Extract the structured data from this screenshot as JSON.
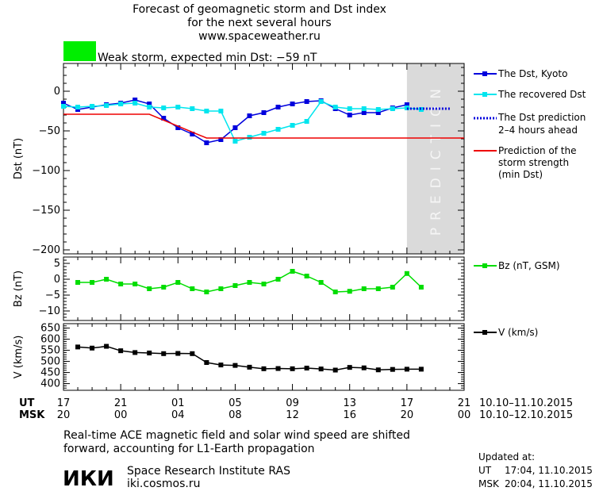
{
  "header": {
    "title_lines": [
      "Forecast of geomagnetic storm and Dst index",
      "for the next several hours",
      "www.spaceweather.ru"
    ],
    "status_text": "Weak storm, expected min Dst: −59 nT",
    "status_color": "#00ee00"
  },
  "x_axis": {
    "ut_label": "UT",
    "msk_label": "MSK",
    "ut_ticks": [
      "17",
      "21",
      "01",
      "05",
      "09",
      "13",
      "17",
      "21"
    ],
    "msk_ticks": [
      "20",
      "00",
      "04",
      "08",
      "12",
      "16",
      "20",
      "00"
    ],
    "ut_range": "10.10–11.10.2015",
    "msk_range": "10.10–12.10.2015"
  },
  "prediction_band_text": "PREDICTION",
  "legend": {
    "dst_kyoto": "The Dst, Kyoto",
    "dst_recovered": "The recovered Dst",
    "dst_prediction_1": "The Dst prediction",
    "dst_prediction_2": "2–4 hours ahead",
    "storm_1": "Prediction of the",
    "storm_2": "storm strength",
    "storm_3": "(min Dst)",
    "bz": "Bz (nT, GSM)",
    "v": "V (km/s)"
  },
  "footer": {
    "note_line1": "Real-time ACE magnetic field and solar wind speed are shifted",
    "note_line2": "forward, accounting for L1-Earth propagation",
    "logo_text": "ИКИ",
    "institute": "Space Research Institute RAS",
    "site": "iki.cosmos.ru",
    "updated_label": "Updated at:",
    "updated_ut_label": "UT",
    "updated_ut_value": "17:04, 11.10.2015",
    "updated_msk_label": "MSK",
    "updated_msk_value": "20:04, 11.10.2015"
  },
  "chart_data": [
    {
      "type": "line",
      "ylabel": "Dst (nT)",
      "ylim": [
        -205,
        35
      ],
      "yticks": [
        0,
        -50,
        -100,
        -150,
        -200
      ],
      "xlim": [
        0,
        28
      ],
      "prediction_start": 24,
      "series": [
        {
          "name": "The Dst, Kyoto",
          "color": "#0000dd",
          "marker": "square",
          "x": [
            0,
            1,
            2,
            3,
            4,
            5,
            6,
            7,
            8,
            9,
            10,
            11,
            12,
            13,
            14,
            15,
            16,
            17,
            18,
            19,
            20,
            21,
            22,
            23,
            24
          ],
          "y": [
            -15,
            -23,
            -20,
            -17,
            -15,
            -11,
            -16,
            -34,
            -46,
            -54,
            -65,
            -61,
            -46,
            -31,
            -27,
            -20,
            -16,
            -13,
            -12,
            -22,
            -30,
            -27,
            -27,
            -21,
            -17
          ]
        },
        {
          "name": "The recovered Dst",
          "color": "#00e5ee",
          "marker": "square",
          "x": [
            0,
            1,
            2,
            3,
            4,
            5,
            6,
            7,
            8,
            9,
            10,
            11,
            12,
            13,
            14,
            15,
            16,
            17,
            18,
            19,
            20,
            21,
            22,
            23,
            24,
            25
          ],
          "y": [
            -19,
            -20,
            -19,
            -18,
            -16,
            -15,
            -20,
            -21,
            -20,
            -22,
            -25,
            -25,
            -63,
            -58,
            -53,
            -48,
            -43,
            -38,
            -13,
            -20,
            -22,
            -22,
            -23,
            -22,
            -21,
            -23
          ]
        },
        {
          "name": "The Dst prediction",
          "color": "#0000dd",
          "dashed": true,
          "x": [
            24,
            25,
            26,
            27
          ],
          "y": [
            -22,
            -22,
            -22,
            -22
          ]
        },
        {
          "name": "Prediction of the storm strength (min Dst)",
          "color": "#ee0000",
          "x": [
            0,
            6,
            10,
            28
          ],
          "y": [
            -29,
            -29,
            -59,
            -59
          ]
        }
      ]
    },
    {
      "type": "line",
      "ylabel": "Bz (nT)",
      "ylim": [
        -13,
        7
      ],
      "yticks": [
        5,
        0,
        -5,
        -10
      ],
      "xlim": [
        0,
        28
      ],
      "series": [
        {
          "name": "Bz (nT, GSM)",
          "color": "#00dd00",
          "marker": "square",
          "x": [
            1,
            2,
            3,
            4,
            5,
            6,
            7,
            8,
            9,
            10,
            11,
            12,
            13,
            14,
            15,
            16,
            17,
            18,
            19,
            20,
            21,
            22,
            23,
            24,
            25
          ],
          "y": [
            -1,
            -1,
            0,
            -1.5,
            -1.5,
            -3,
            -2.5,
            -1,
            -3,
            -4,
            -3,
            -2,
            -1,
            -1.5,
            0,
            2.5,
            1,
            -1,
            -4,
            -3.8,
            -3,
            -3,
            -2.5,
            1.8,
            -2.5
          ]
        }
      ]
    },
    {
      "type": "line",
      "ylabel": "V (km/s)",
      "ylim": [
        370,
        670
      ],
      "yticks": [
        650,
        600,
        550,
        500,
        450,
        400
      ],
      "xlim": [
        0,
        28
      ],
      "series": [
        {
          "name": "V (km/s)",
          "color": "#000000",
          "marker": "square",
          "x": [
            1,
            2,
            3,
            4,
            5,
            6,
            7,
            8,
            9,
            10,
            11,
            12,
            13,
            14,
            15,
            16,
            17,
            18,
            19,
            20,
            21,
            22,
            23,
            24,
            25
          ],
          "y": [
            565,
            560,
            568,
            548,
            540,
            538,
            535,
            536,
            535,
            495,
            484,
            482,
            474,
            467,
            468,
            467,
            470,
            466,
            461,
            473,
            471,
            462,
            464,
            465,
            465
          ]
        }
      ]
    }
  ]
}
